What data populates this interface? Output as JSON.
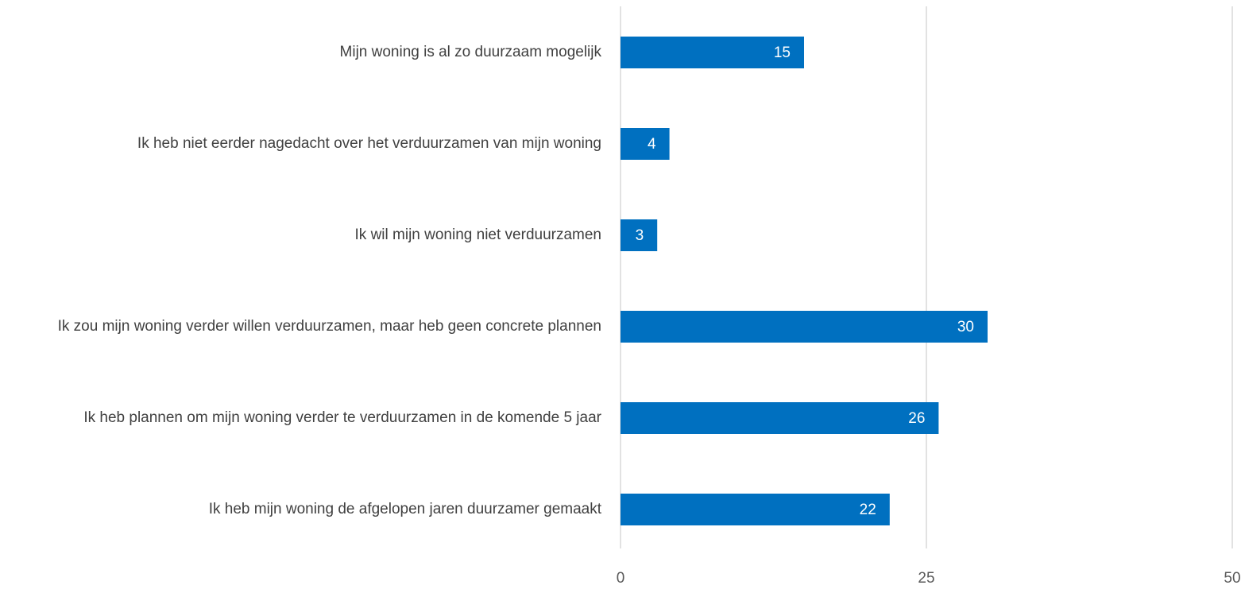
{
  "chart_data": {
    "type": "barh",
    "categories": [
      "Mijn woning is al zo duurzaam mogelijk",
      "Ik heb niet eerder nagedacht over het verduurzamen van mijn woning",
      "Ik wil mijn woning niet verduurzamen",
      "Ik zou mijn woning verder willen verduurzamen, maar heb geen concrete plannen",
      "Ik heb plannen om mijn woning verder te verduurzamen in de komende 5 jaar",
      "Ik heb mijn woning de afgelopen jaren duurzamer gemaakt"
    ],
    "values": [
      15,
      4,
      3,
      30,
      26,
      22
    ],
    "color": "#0070c0",
    "xlim": [
      0,
      50
    ],
    "xticks": [
      0,
      25,
      50
    ],
    "grid": true
  }
}
